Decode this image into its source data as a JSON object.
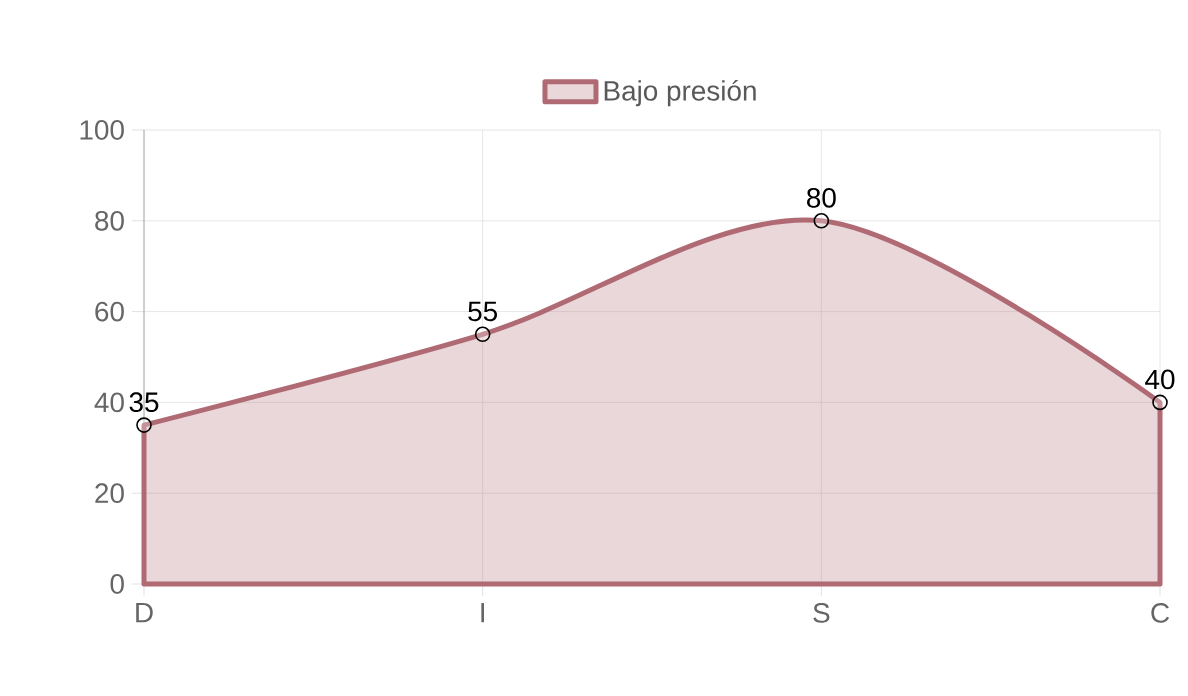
{
  "chart_data": {
    "type": "area",
    "categories": [
      "D",
      "I",
      "S",
      "C"
    ],
    "series": [
      {
        "name": "Bajo presión",
        "color": "#b06a74",
        "values": [
          35,
          55,
          80,
          40
        ]
      }
    ],
    "ylim": [
      0,
      100
    ],
    "yticks": [
      0,
      20,
      40,
      60,
      80,
      100
    ],
    "grid": true,
    "legend": "top",
    "marker": "circle",
    "data_labels": true
  }
}
